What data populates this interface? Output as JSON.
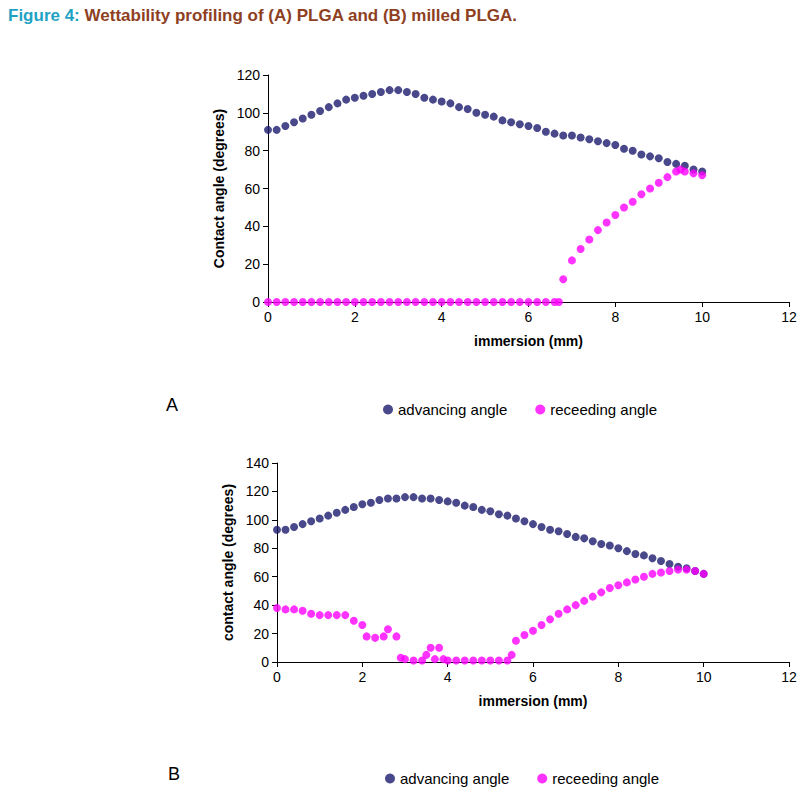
{
  "figure": {
    "label": "Figure 4:",
    "caption": "Wettability profiling of (A) PLGA and (B) milled PLGA."
  },
  "chart_data": [
    {
      "type": "scatter",
      "annotation": "A",
      "x_label": "immersion (mm)",
      "y_label": "Contact angle (degrees)",
      "xlim": [
        0,
        12
      ],
      "xticks": [
        0,
        2,
        4,
        6,
        8,
        10,
        12
      ],
      "ylim": [
        0,
        120
      ],
      "yticks": [
        0,
        20,
        40,
        60,
        80,
        100,
        120
      ],
      "grid": false,
      "legend": "bottom",
      "marker": "circle",
      "series": [
        {
          "name": "advancing angle",
          "color": "#1a1a6e",
          "x": [
            0,
            0.2,
            0.4,
            0.6,
            0.8,
            1.0,
            1.2,
            1.4,
            1.6,
            1.8,
            2.0,
            2.2,
            2.4,
            2.6,
            2.8,
            3.0,
            3.2,
            3.4,
            3.6,
            3.8,
            4.0,
            4.2,
            4.4,
            4.6,
            4.8,
            5.0,
            5.2,
            5.4,
            5.6,
            5.8,
            6.0,
            6.2,
            6.4,
            6.6,
            6.8,
            7.0,
            7.2,
            7.4,
            7.6,
            7.8,
            8.0,
            8.2,
            8.4,
            8.6,
            8.8,
            9.0,
            9.2,
            9.4,
            9.6,
            9.8,
            10.0
          ],
          "values": [
            91,
            91,
            93,
            95,
            97,
            99,
            101,
            103,
            105,
            107,
            108,
            109,
            110,
            111,
            112,
            112,
            111,
            110,
            108,
            107,
            106,
            105,
            103,
            102,
            100,
            99,
            98,
            96,
            95,
            94,
            93,
            92,
            90,
            89,
            88,
            88,
            87,
            86,
            85,
            84,
            83,
            81,
            80,
            78,
            77,
            76,
            74,
            73,
            72,
            70,
            69
          ]
        },
        {
          "name": "receeding angle",
          "color": "#ff00ff",
          "x": [
            0,
            0.2,
            0.4,
            0.6,
            0.8,
            1.0,
            1.2,
            1.4,
            1.6,
            1.8,
            2.0,
            2.2,
            2.4,
            2.6,
            2.8,
            3.0,
            3.2,
            3.4,
            3.6,
            3.8,
            4.0,
            4.2,
            4.4,
            4.6,
            4.8,
            5.0,
            5.2,
            5.4,
            5.6,
            5.8,
            6.0,
            6.2,
            6.4,
            6.6,
            6.7,
            6.8,
            7.0,
            7.2,
            7.4,
            7.6,
            7.8,
            8.0,
            8.2,
            8.4,
            8.6,
            8.8,
            9.0,
            9.2,
            9.4,
            9.5,
            9.6,
            9.8,
            10.0
          ],
          "values": [
            0,
            0,
            0,
            0,
            0,
            0,
            0,
            0,
            0,
            0,
            0,
            0,
            0,
            0,
            0,
            0,
            0,
            0,
            0,
            0,
            0,
            0,
            0,
            0,
            0,
            0,
            0,
            0,
            0,
            0,
            0,
            0,
            0,
            0,
            0,
            12,
            22,
            28,
            33,
            38,
            42,
            46,
            50,
            53,
            57,
            60,
            63,
            66,
            69,
            70,
            69,
            68,
            67
          ]
        }
      ]
    },
    {
      "type": "scatter",
      "annotation": "B",
      "x_label": "immersion (mm)",
      "y_label": "contact angle (degrees)",
      "xlim": [
        0,
        12
      ],
      "xticks": [
        0,
        2,
        4,
        6,
        8,
        10,
        12
      ],
      "ylim": [
        0,
        140
      ],
      "yticks": [
        0,
        20,
        40,
        60,
        80,
        100,
        120,
        140
      ],
      "grid": false,
      "legend": "bottom",
      "marker": "circle",
      "series": [
        {
          "name": "advancing angle",
          "color": "#1a1a6e",
          "x": [
            0,
            0.2,
            0.4,
            0.6,
            0.8,
            1.0,
            1.2,
            1.4,
            1.6,
            1.8,
            2.0,
            2.2,
            2.4,
            2.6,
            2.8,
            3.0,
            3.2,
            3.4,
            3.6,
            3.8,
            4.0,
            4.2,
            4.4,
            4.6,
            4.8,
            5.0,
            5.2,
            5.4,
            5.6,
            5.8,
            6.0,
            6.2,
            6.4,
            6.6,
            6.8,
            7.0,
            7.2,
            7.4,
            7.6,
            7.8,
            8.0,
            8.2,
            8.4,
            8.6,
            8.8,
            9.0,
            9.2,
            9.4,
            9.6,
            9.8,
            10.0
          ],
          "values": [
            93,
            93,
            95,
            97,
            99,
            101,
            103,
            105,
            107,
            109,
            111,
            112,
            114,
            115,
            115,
            116,
            116,
            115,
            115,
            114,
            113,
            112,
            110,
            109,
            107,
            106,
            104,
            103,
            101,
            99,
            97,
            95,
            93,
            92,
            90,
            88,
            87,
            85,
            83,
            82,
            80,
            78,
            76,
            75,
            73,
            71,
            69,
            67,
            66,
            64,
            62
          ]
        },
        {
          "name": "receeding angle",
          "color": "#ff00ff",
          "x": [
            0,
            0.2,
            0.4,
            0.6,
            0.8,
            1.0,
            1.2,
            1.4,
            1.6,
            1.8,
            2.0,
            2.1,
            2.3,
            2.5,
            2.6,
            2.8,
            2.9,
            3.0,
            3.2,
            3.4,
            3.5,
            3.6,
            3.7,
            3.8,
            3.9,
            4.0,
            4.2,
            4.4,
            4.6,
            4.8,
            5.0,
            5.2,
            5.4,
            5.5,
            5.6,
            5.8,
            6.0,
            6.2,
            6.4,
            6.6,
            6.8,
            7.0,
            7.2,
            7.4,
            7.6,
            7.8,
            8.0,
            8.2,
            8.4,
            8.6,
            8.8,
            9.0,
            9.2,
            9.4,
            9.6,
            9.8,
            10.0
          ],
          "values": [
            38,
            37,
            37,
            36,
            34,
            33,
            33,
            33,
            33,
            29,
            26,
            18,
            17,
            18,
            23,
            18,
            3,
            2,
            1,
            1,
            5,
            10,
            2,
            10,
            2,
            1,
            1,
            1,
            1,
            1,
            1,
            1,
            1,
            5,
            15,
            19,
            22,
            26,
            30,
            34,
            37,
            40,
            43,
            46,
            49,
            52,
            54,
            56,
            58,
            60,
            62,
            63,
            64,
            65,
            65,
            64,
            62
          ]
        }
      ]
    }
  ]
}
